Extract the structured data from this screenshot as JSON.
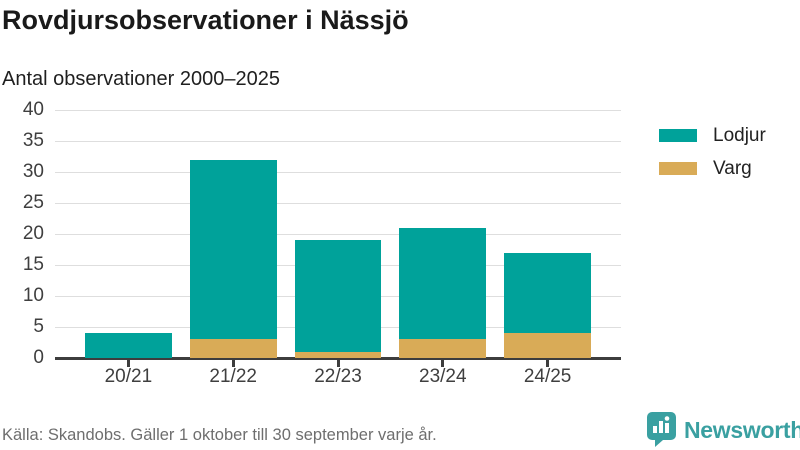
{
  "header": {
    "title": "Rovdjursobservationer i Nässjö",
    "subtitle": "Antal observationer 2000–2025"
  },
  "chart_data": {
    "type": "bar",
    "stacked": true,
    "title": "Rovdjursobservationer i Nässjö",
    "subtitle": "Antal observationer 2000–2025",
    "categories": [
      "20/21",
      "21/22",
      "22/23",
      "23/24",
      "24/25"
    ],
    "series": [
      {
        "name": "Lodjur",
        "color": "#00a29a",
        "values": [
          4,
          29,
          18,
          18,
          13
        ]
      },
      {
        "name": "Varg",
        "color": "#d9ab57",
        "values": [
          0,
          3,
          1,
          3,
          4
        ]
      }
    ],
    "totals": [
      4,
      32,
      19,
      21,
      17
    ],
    "xlabel": "",
    "ylabel": "",
    "ylim": [
      0,
      40
    ],
    "yticks": [
      0,
      5,
      10,
      15,
      20,
      25,
      30,
      35,
      40
    ],
    "grid": true,
    "legend_position": "right",
    "axis_color": "#3d3d3d",
    "gridline_color": "#dedede",
    "tick_label_color": "#3f3f3f"
  },
  "footer": {
    "source": "Källa: Skandobs. Gäller 1 oktober till 30 september varje år.",
    "brand": "Newsworthy",
    "brand_color": "#3aa0a1"
  }
}
